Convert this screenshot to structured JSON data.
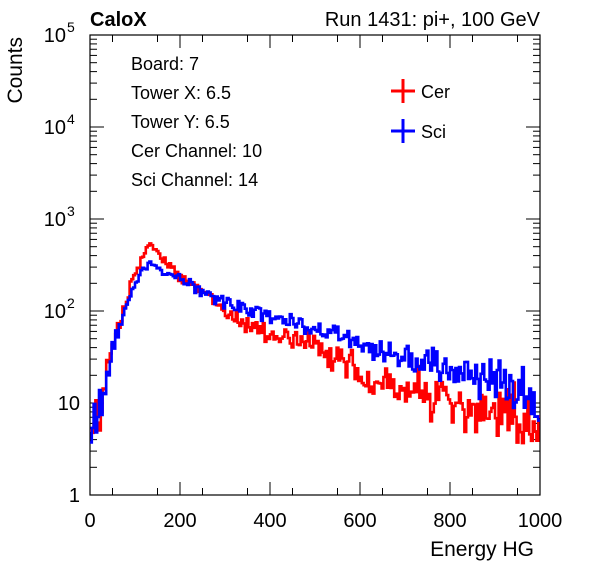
{
  "header": {
    "experiment": "CaloX",
    "run_info": "Run 1431: pi+, 100 GeV"
  },
  "info_box": [
    "Board: 7",
    "Tower X: 6.5",
    "Tower Y: 6.5",
    "Cer Channel: 10",
    "Sci Channel: 14"
  ],
  "chart_data": {
    "type": "line",
    "title": "",
    "xlabel": "Energy HG",
    "ylabel": "Counts",
    "xlim": [
      0,
      1000
    ],
    "ylim": [
      1,
      100000
    ],
    "y_scale": "log",
    "grid": false,
    "legend_placement": "top-right",
    "x_ticks": [
      "0",
      "200",
      "400",
      "600",
      "800",
      "1000"
    ],
    "y_ticks": [
      {
        "value": 1,
        "base": "1",
        "exp": ""
      },
      {
        "value": 10,
        "base": "10",
        "exp": ""
      },
      {
        "value": 100,
        "base": "10",
        "exp": "2"
      },
      {
        "value": 1000,
        "base": "10",
        "exp": "3"
      },
      {
        "value": 10000,
        "base": "10",
        "exp": "4"
      },
      {
        "value": 100000,
        "base": "10",
        "exp": "5"
      }
    ],
    "x": [
      0,
      25,
      50,
      75,
      100,
      125,
      135,
      150,
      175,
      200,
      250,
      300,
      350,
      400,
      450,
      500,
      550,
      600,
      650,
      700,
      750,
      800,
      850,
      900,
      950,
      1000
    ],
    "series": [
      {
        "name": "Cer",
        "color": "#ff0000",
        "values": [
          5,
          8,
          40,
          110,
          250,
          450,
          560,
          420,
          320,
          240,
          160,
          100,
          70,
          58,
          50,
          40,
          30,
          22,
          17,
          14,
          12,
          10,
          8,
          7,
          6,
          6
        ]
      },
      {
        "name": "Sci",
        "color": "#0000ff",
        "values": [
          6,
          9,
          40,
          100,
          200,
          300,
          330,
          290,
          260,
          220,
          165,
          125,
          105,
          88,
          75,
          65,
          55,
          45,
          38,
          33,
          28,
          24,
          20,
          17,
          14,
          11
        ]
      }
    ]
  }
}
